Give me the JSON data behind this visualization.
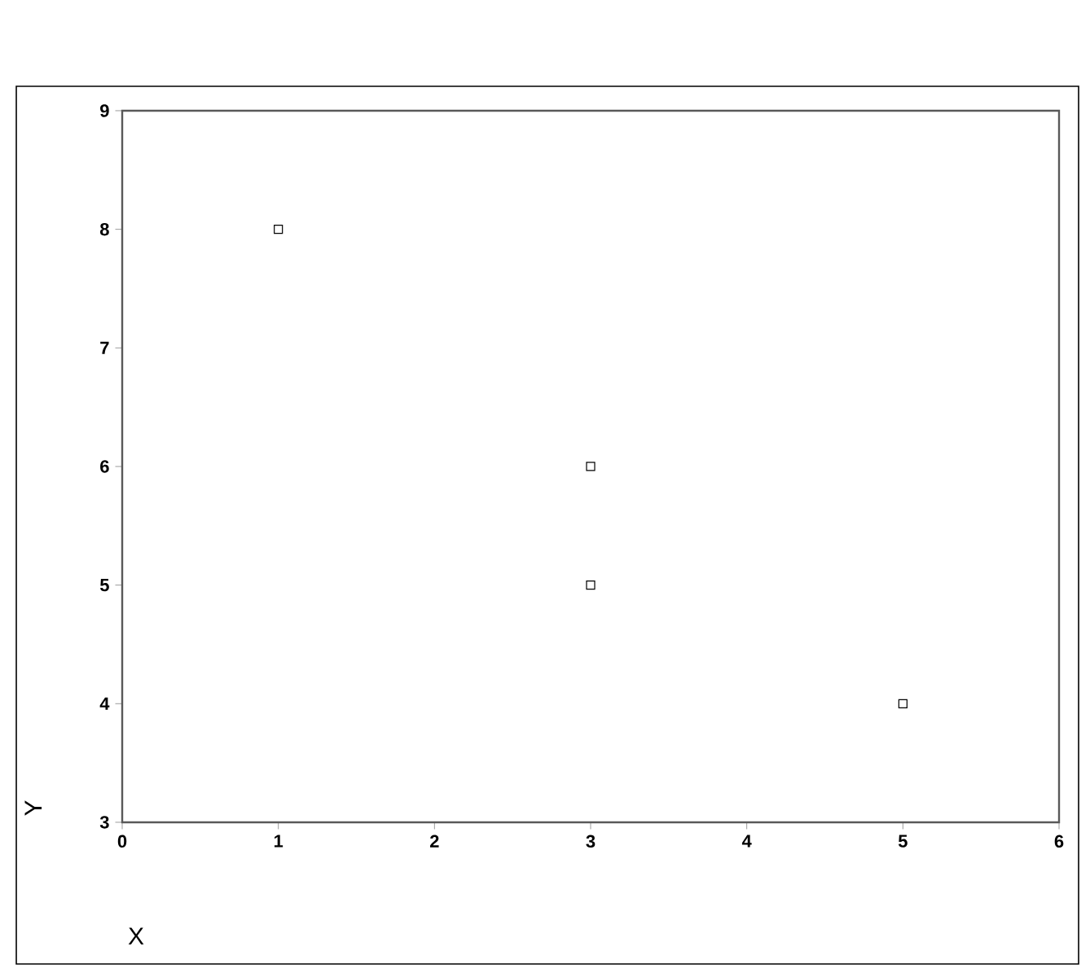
{
  "chart_data": {
    "type": "scatter",
    "xlabel": "X",
    "ylabel": "Y",
    "x": [
      1,
      3,
      3,
      5
    ],
    "values": [
      8,
      6,
      5,
      4
    ],
    "color": "#000000",
    "marker": "square",
    "xlim": [
      0,
      6
    ],
    "ylim": [
      3,
      9
    ],
    "xticks": [
      0,
      1,
      2,
      3,
      4,
      5,
      6
    ],
    "yticks": [
      3,
      4,
      5,
      6,
      7,
      8,
      9
    ],
    "grid": false
  }
}
